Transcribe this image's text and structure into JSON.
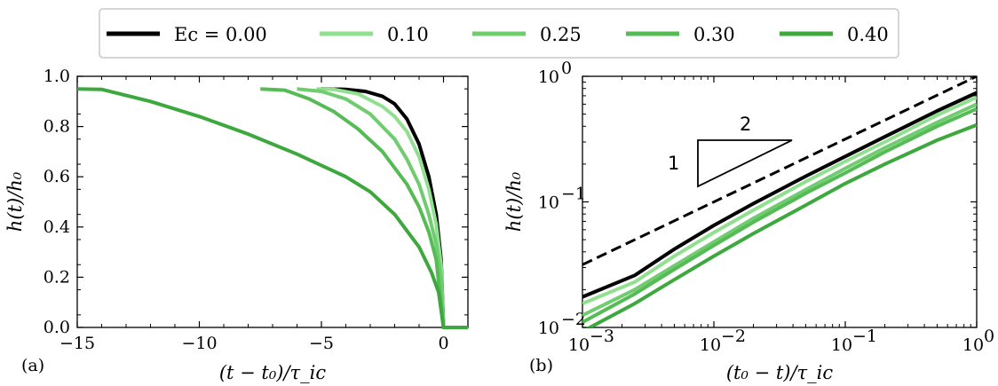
{
  "chart_data": [
    {
      "type": "line",
      "panel_label": "(a)",
      "xlabel": "(t − t₀)/τ_ic",
      "ylabel": "h(t)/h₀",
      "xlim": [
        -15,
        1
      ],
      "ylim": [
        0,
        1
      ],
      "xticks": [
        -15,
        -10,
        -5,
        0
      ],
      "xtick_labels": [
        "−15",
        "−10",
        "−5",
        "0"
      ],
      "yticks": [
        0,
        0.2,
        0.4,
        0.6,
        0.8,
        1.0
      ],
      "ytick_labels": [
        "0.0",
        "0.2",
        "0.4",
        "0.6",
        "0.8",
        "1.0"
      ],
      "series": [
        {
          "name": "Ec = 0.00",
          "color": "#000000",
          "x": [
            -5.0,
            -4.0,
            -3.2,
            -2.5,
            -2.0,
            -1.5,
            -1.0,
            -0.6,
            -0.3,
            -0.1,
            0.0,
            1.0
          ],
          "y": [
            0.95,
            0.948,
            0.94,
            0.92,
            0.89,
            0.83,
            0.73,
            0.6,
            0.45,
            0.27,
            0.0,
            0.0
          ]
        },
        {
          "name": "0.10",
          "color": "#90e090",
          "x": [
            -5.2,
            -4.5,
            -3.5,
            -2.5,
            -2.0,
            -1.5,
            -1.0,
            -0.6,
            -0.3,
            -0.1,
            0.0,
            1.0
          ],
          "y": [
            0.95,
            0.948,
            0.93,
            0.88,
            0.84,
            0.78,
            0.68,
            0.55,
            0.41,
            0.25,
            0.0,
            0.0
          ]
        },
        {
          "name": "0.25",
          "color": "#6fcc6f",
          "x": [
            -6.0,
            -5.0,
            -4.0,
            -3.0,
            -2.0,
            -1.5,
            -1.0,
            -0.6,
            -0.3,
            -0.1,
            0.0,
            1.0
          ],
          "y": [
            0.95,
            0.94,
            0.91,
            0.85,
            0.75,
            0.67,
            0.57,
            0.45,
            0.33,
            0.2,
            0.0,
            0.0
          ]
        },
        {
          "name": "0.30",
          "color": "#55bb55",
          "x": [
            -7.5,
            -6.5,
            -5.5,
            -4.5,
            -3.5,
            -2.5,
            -1.5,
            -1.0,
            -0.6,
            -0.3,
            0.0,
            1.0
          ],
          "y": [
            0.95,
            0.945,
            0.91,
            0.86,
            0.79,
            0.7,
            0.57,
            0.48,
            0.38,
            0.27,
            0.0,
            0.0
          ]
        },
        {
          "name": "0.40",
          "color": "#3da83d",
          "x": [
            -15.0,
            -14.0,
            -12.0,
            -10.0,
            -8.0,
            -6.0,
            -4.0,
            -3.0,
            -2.0,
            -1.0,
            -0.5,
            -0.2,
            0.0,
            1.0
          ],
          "y": [
            0.95,
            0.948,
            0.9,
            0.84,
            0.77,
            0.69,
            0.6,
            0.54,
            0.45,
            0.32,
            0.22,
            0.14,
            0.0,
            0.0
          ]
        }
      ]
    },
    {
      "type": "line",
      "scale": "log-log",
      "panel_label": "(b)",
      "xlabel": "(t₀ − t)/τ_ic",
      "ylabel": "h(t)/h₀",
      "xlim": [
        0.001,
        1
      ],
      "ylim": [
        0.01,
        1
      ],
      "tick_base": "10",
      "tick_exponents": [
        "−3",
        "−2",
        "−1",
        "0"
      ],
      "ytick_exponents": [
        "−2",
        "−1",
        "0"
      ],
      "slope_annotation": {
        "rise_label": "1",
        "run_label": "2"
      },
      "series": [
        {
          "name": "reference slope 1/2",
          "color": "#000000",
          "dashed": true,
          "x": [
            0.001,
            1
          ],
          "y": [
            0.0316,
            1.0
          ]
        },
        {
          "name": "Ec = 0.00",
          "color": "#000000",
          "x": [
            0.001,
            0.0025,
            0.005,
            0.01,
            0.02,
            0.05,
            0.1,
            0.2,
            0.5,
            1.0
          ],
          "y": [
            0.0175,
            0.026,
            0.042,
            0.065,
            0.097,
            0.16,
            0.23,
            0.33,
            0.53,
            0.74
          ]
        },
        {
          "name": "0.10",
          "color": "#90e090",
          "x": [
            0.001,
            0.0025,
            0.005,
            0.01,
            0.02,
            0.05,
            0.1,
            0.2,
            0.5,
            1.0
          ],
          "y": [
            0.0155,
            0.023,
            0.037,
            0.057,
            0.086,
            0.145,
            0.21,
            0.3,
            0.49,
            0.68
          ]
        },
        {
          "name": "0.25",
          "color": "#6fcc6f",
          "x": [
            0.001,
            0.0025,
            0.005,
            0.01,
            0.02,
            0.05,
            0.1,
            0.2,
            0.5,
            1.0
          ],
          "y": [
            0.0125,
            0.02,
            0.031,
            0.048,
            0.074,
            0.125,
            0.185,
            0.27,
            0.43,
            0.6
          ]
        },
        {
          "name": "0.30",
          "color": "#55bb55",
          "x": [
            0.001,
            0.0025,
            0.005,
            0.01,
            0.02,
            0.05,
            0.1,
            0.2,
            0.5,
            1.0
          ],
          "y": [
            0.011,
            0.0185,
            0.029,
            0.045,
            0.069,
            0.117,
            0.17,
            0.25,
            0.4,
            0.55
          ]
        },
        {
          "name": "0.40",
          "color": "#3da83d",
          "x": [
            0.001,
            0.0025,
            0.005,
            0.01,
            0.02,
            0.05,
            0.1,
            0.2,
            0.5,
            1.0
          ],
          "y": [
            0.0093,
            0.0155,
            0.024,
            0.037,
            0.056,
            0.094,
            0.14,
            0.2,
            0.31,
            0.41
          ]
        }
      ]
    }
  ],
  "legend": {
    "entries": [
      {
        "label": "Ec = 0.00",
        "color": "#000000"
      },
      {
        "label": "0.10",
        "color": "#90e090"
      },
      {
        "label": "0.25",
        "color": "#6fcc6f"
      },
      {
        "label": "0.30",
        "color": "#55bb55"
      },
      {
        "label": "0.40",
        "color": "#3da83d"
      }
    ]
  }
}
